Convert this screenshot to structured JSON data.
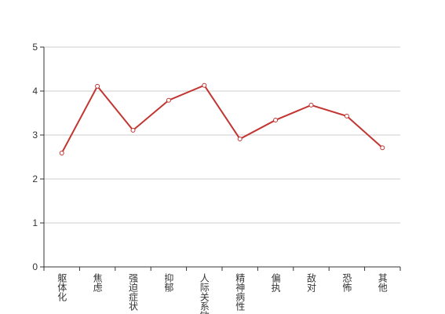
{
  "chart_data": {
    "type": "line",
    "categories": [
      "躯体化",
      "焦虑",
      "强迫症状",
      "抑郁",
      "人际关系敏感",
      "精神病性",
      "偏执",
      "敌对",
      "恐怖",
      "其他"
    ],
    "series": [
      {
        "color": "#c23531",
        "values": [
          2.59,
          4.11,
          3.11,
          3.79,
          4.13,
          2.91,
          3.34,
          3.68,
          3.43,
          2.71
        ]
      }
    ],
    "ylim": [
      0,
      5
    ],
    "yticks": [
      0,
      1,
      2,
      3,
      4,
      5
    ],
    "grid": true
  }
}
